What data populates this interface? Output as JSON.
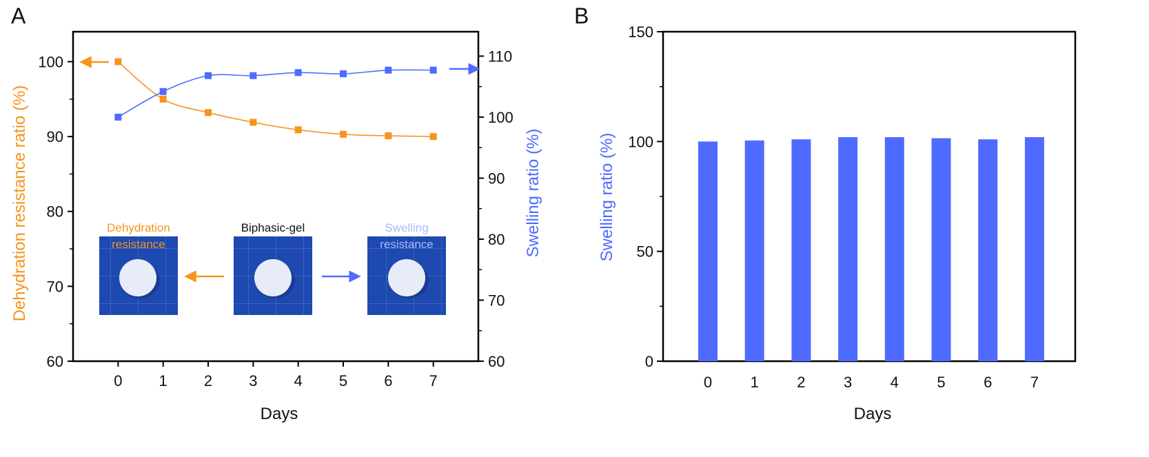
{
  "panels": {
    "a": {
      "letter": "A"
    },
    "b": {
      "letter": "B"
    }
  },
  "colors": {
    "orange": "#F7931E",
    "blue": "#4F6BFF",
    "light_blue": "#A8B8FF",
    "gel_bg": "#1D49B0",
    "gel_disc": "#E8ECF8",
    "axis": "#000000"
  },
  "chart_data": [
    {
      "type": "line",
      "panel": "A",
      "title": "",
      "x": [
        0,
        1,
        2,
        3,
        4,
        5,
        6,
        7
      ],
      "xlabel": "Days",
      "xlim": [
        -1,
        8
      ],
      "x_ticks": [
        "0",
        "1",
        "2",
        "3",
        "4",
        "5",
        "6",
        "7"
      ],
      "y_left": {
        "label": "Dehydration resistance ratio (%)",
        "ylim": [
          60,
          104
        ],
        "ticks": [
          "60",
          "70",
          "80",
          "90",
          "100"
        ]
      },
      "y_right": {
        "label": "Swelling ratio (%)",
        "ylim": [
          60,
          114
        ],
        "ticks": [
          "60",
          "70",
          "80",
          "90",
          "100",
          "110"
        ]
      },
      "series": [
        {
          "name": "Dehydration resistance",
          "axis": "left",
          "color": "#F7931E",
          "marker": "square",
          "values": [
            100,
            95,
            93.2,
            91.9,
            90.9,
            90.3,
            90.1,
            90.0
          ]
        },
        {
          "name": "Swelling resistance",
          "axis": "right",
          "color": "#4F6BFF",
          "marker": "square",
          "values": [
            100,
            104.2,
            106.8,
            106.8,
            107.3,
            107.1,
            107.7,
            107.7
          ]
        }
      ],
      "annotations": {
        "left_arrow": "series 1 uses left axis",
        "right_arrow": "series 2 uses right axis"
      },
      "inset": {
        "left_label_line1": "Dehydration",
        "left_label_line2": "resistance",
        "center_label": "Biphasic-gel",
        "right_label_line1": "Swelling",
        "right_label_line2": "resistance"
      }
    },
    {
      "type": "bar",
      "panel": "B",
      "title": "",
      "categories": [
        "0",
        "1",
        "2",
        "3",
        "4",
        "5",
        "6",
        "7"
      ],
      "values": [
        100,
        100.5,
        101,
        102,
        102,
        101.5,
        101,
        102
      ],
      "xlabel": "Days",
      "ylabel": "Swelling ratio (%)",
      "ylim": [
        0,
        150
      ],
      "y_ticks": [
        "0",
        "50",
        "100",
        "150"
      ],
      "color": "#4F6BFF"
    }
  ]
}
